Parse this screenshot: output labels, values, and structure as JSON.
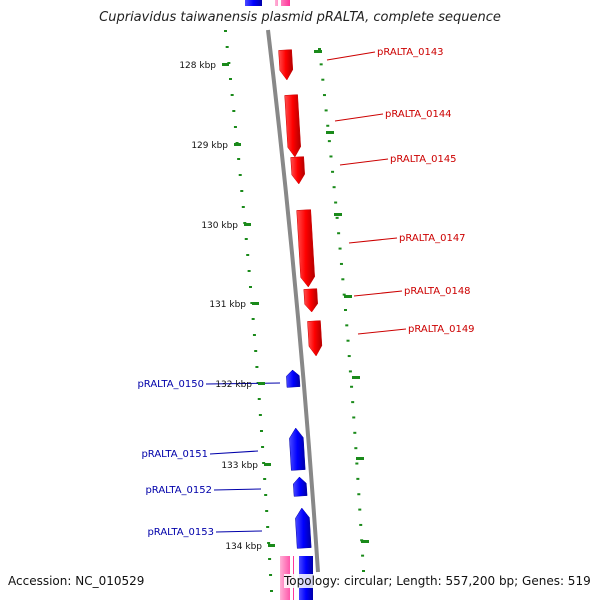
{
  "title": "Cupriavidus taiwanensis plasmid pRALTA, complete sequence",
  "footer": {
    "accession": "Accession: NC_010529",
    "summary": "Topology: circular; Length: 557,200 bp; Genes: 519"
  },
  "ruler": [
    {
      "label": "128 kbp",
      "kbp": 128
    },
    {
      "label": "129 kbp",
      "kbp": 129
    },
    {
      "label": "130 kbp",
      "kbp": 130
    },
    {
      "label": "131 kbp",
      "kbp": 131
    },
    {
      "label": "132 kbp",
      "kbp": 132
    },
    {
      "label": "133 kbp",
      "kbp": 133
    },
    {
      "label": "134 kbp",
      "kbp": 134
    }
  ],
  "genes": [
    {
      "label": "pRALTA_0143",
      "strand": "forward",
      "color": "#ff0000"
    },
    {
      "label": "pRALTA_0144",
      "strand": "forward",
      "color": "#ff0000"
    },
    {
      "label": "pRALTA_0145",
      "strand": "forward",
      "color": "#ff0000"
    },
    {
      "label": "pRALTA_0147",
      "strand": "forward",
      "color": "#ff0000"
    },
    {
      "label": "pRALTA_0148",
      "strand": "forward",
      "color": "#ff0000"
    },
    {
      "label": "pRALTA_0149",
      "strand": "forward",
      "color": "#ff0000"
    },
    {
      "label": "pRALTA_0150",
      "strand": "reverse",
      "color": "#0000ff"
    },
    {
      "label": "pRALTA_0151",
      "strand": "reverse",
      "color": "#0000ff"
    },
    {
      "label": "pRALTA_0152",
      "strand": "reverse",
      "color": "#0000ff"
    },
    {
      "label": "pRALTA_0153",
      "strand": "reverse",
      "color": "#0000ff"
    }
  ],
  "colors": {
    "forward_gene": "#ff0000",
    "reverse_gene": "#0000ff",
    "forward_label": "#cc0000",
    "reverse_label": "#0000aa",
    "backbone": "#888888",
    "ruler_dots": "#1a8a1a",
    "partial_pink": "#ff3399"
  }
}
